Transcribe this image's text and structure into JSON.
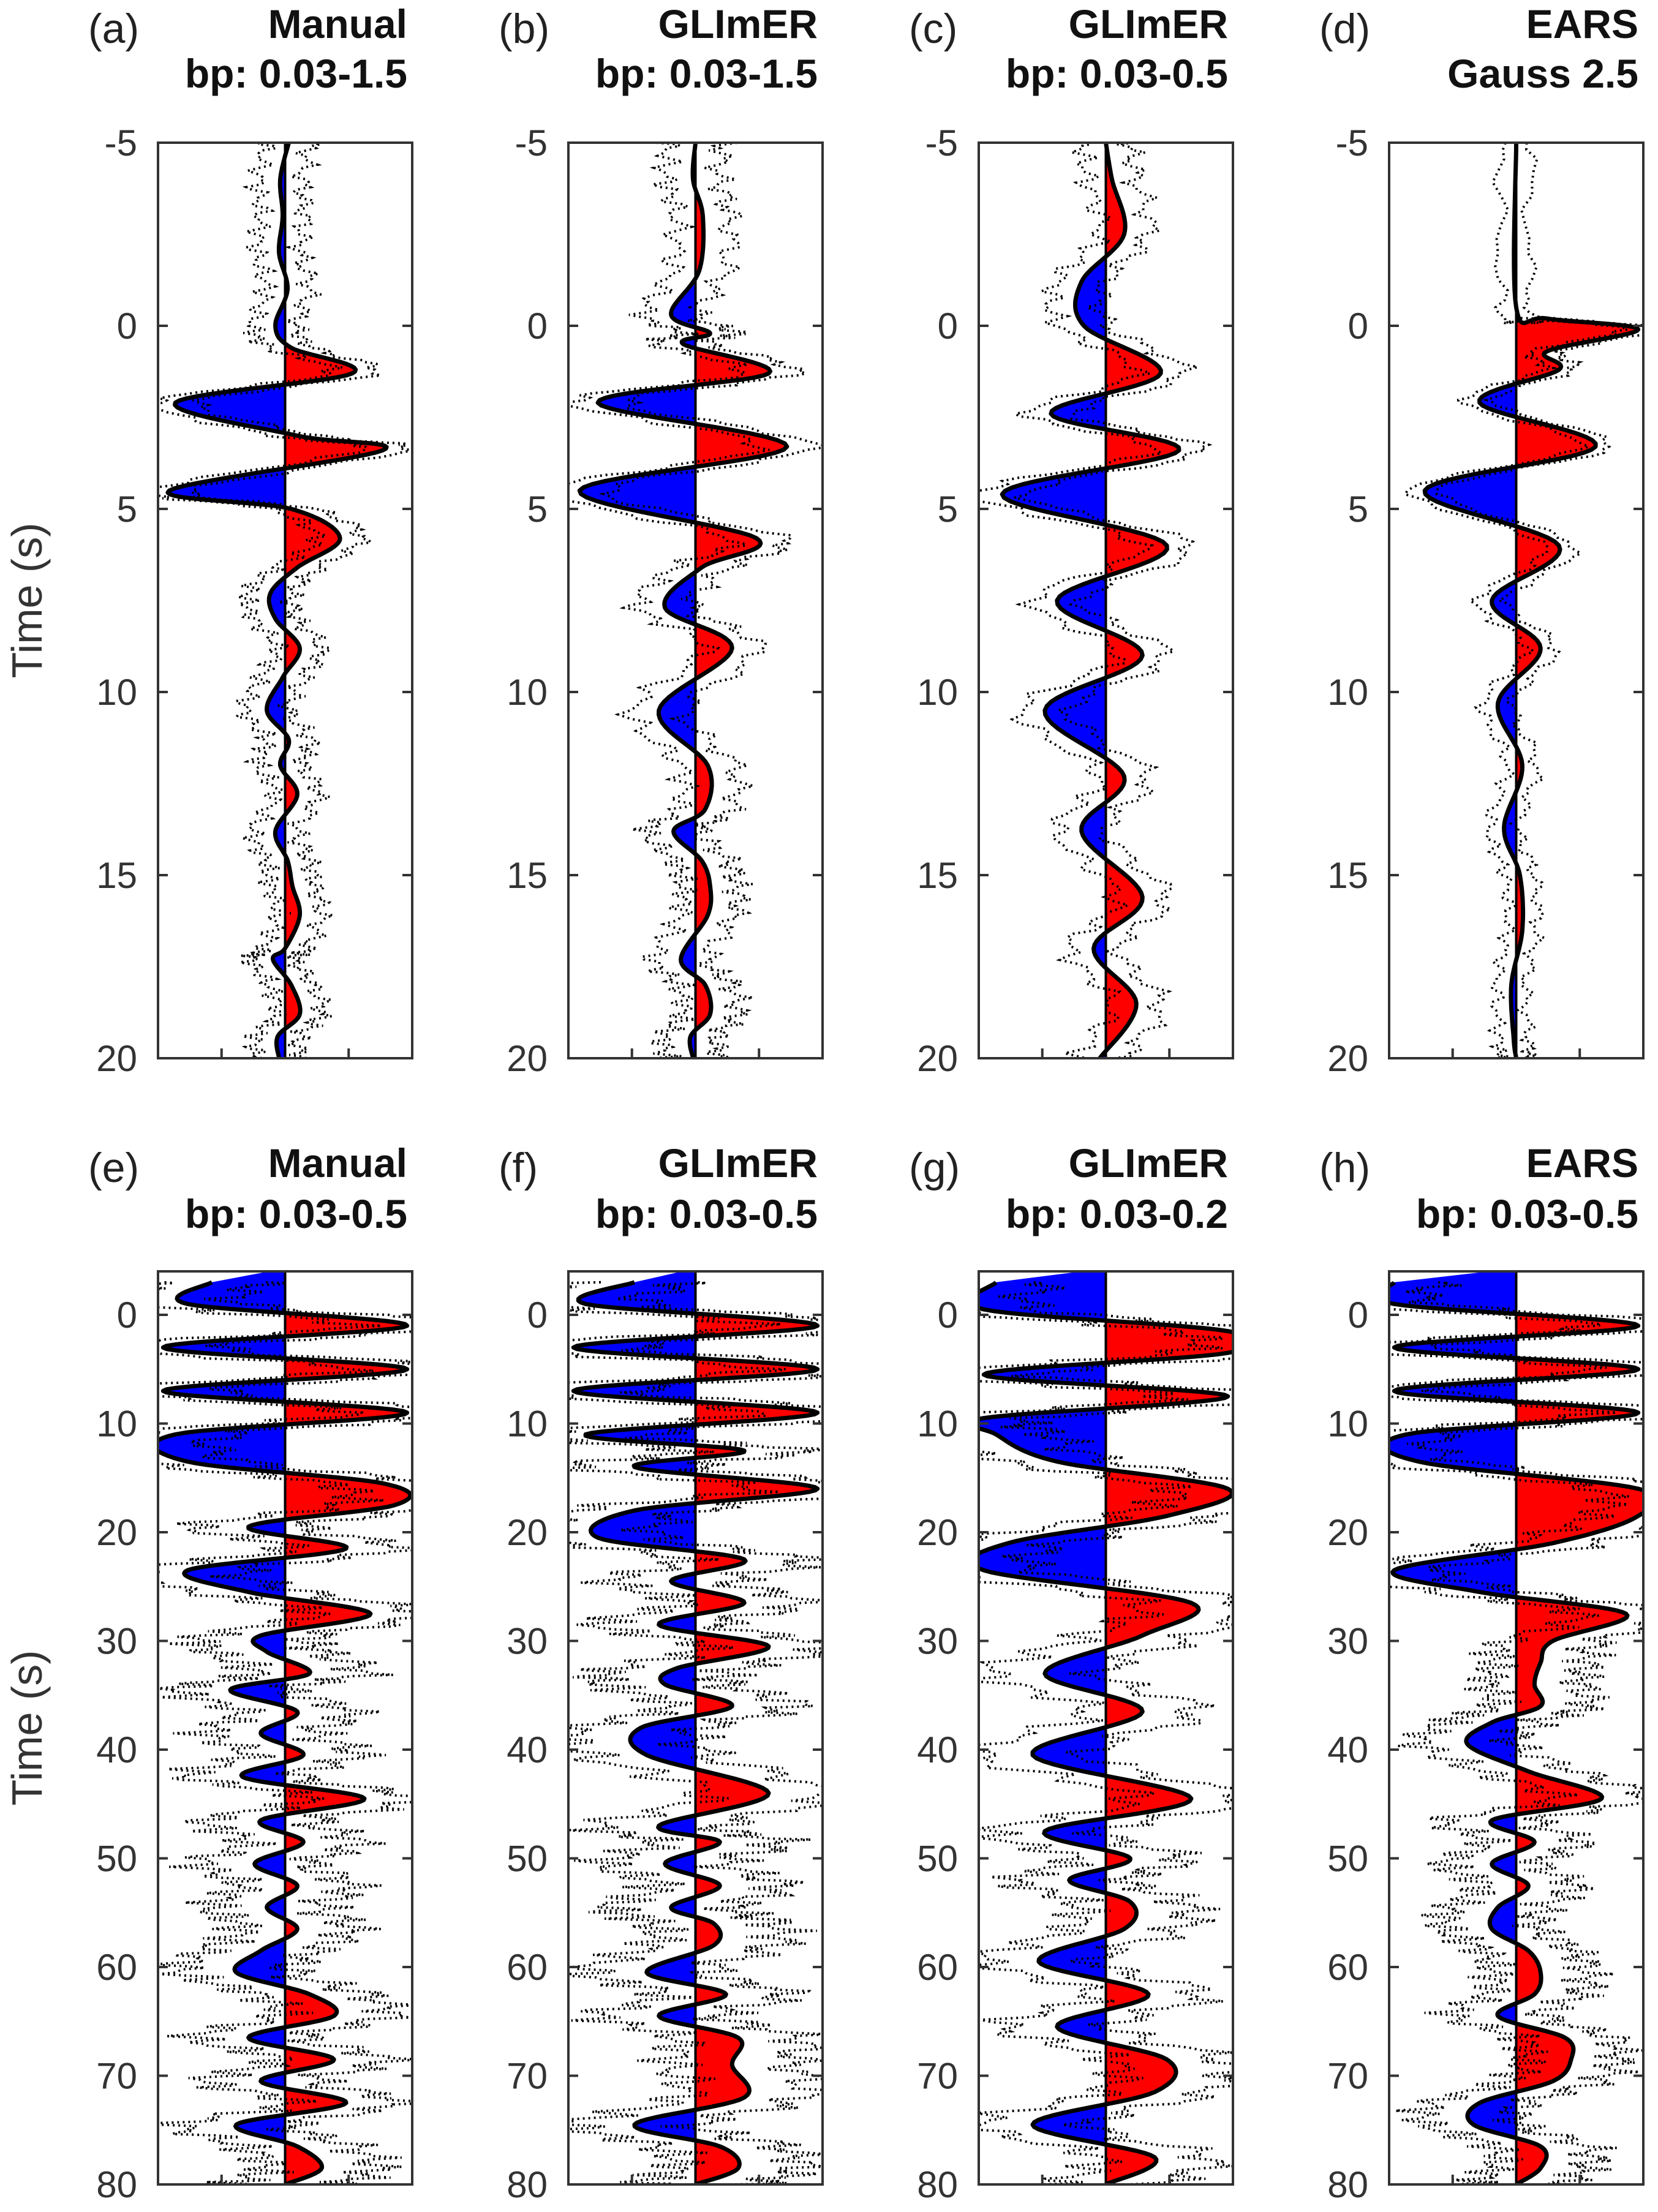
{
  "figure": {
    "ylabel": "Time (s)",
    "colors": {
      "positive": "#ff0000",
      "negative": "#0000ff",
      "trace": "#000000",
      "bounds": "#000000",
      "frame": "#333333"
    }
  },
  "chart_data": [
    {
      "type": "area",
      "panel": "(a)",
      "title_line1": "Manual",
      "title_line2": "bp: 0.03-1.5",
      "ylabel": "Time (s)",
      "ylim": [
        -5,
        20
      ],
      "yticks": [
        "-5",
        "0",
        "5",
        "10",
        "15",
        "20"
      ],
      "x": [
        -5,
        -4,
        -3,
        -2,
        -1,
        0,
        0.6,
        1.3,
        2.1,
        3.0,
        3.4,
        4.5,
        5.0,
        5.8,
        6.6,
        7.3,
        8.0,
        8.8,
        9.6,
        10.5,
        11.3,
        12.0,
        12.8,
        13.8,
        14.6,
        15.3,
        16.1,
        17.0,
        17.3,
        18.0,
        18.8,
        19.4,
        20
      ],
      "values": [
        0.03,
        -0.04,
        -0.02,
        -0.05,
        0.02,
        -0.08,
        0.05,
        0.55,
        -0.9,
        0.1,
        0.8,
        -0.95,
        0.05,
        0.45,
        0.1,
        -0.12,
        -0.08,
        0.12,
        -0.02,
        -0.15,
        0.03,
        -0.04,
        0.1,
        -0.08,
        0.02,
        0.06,
        0.12,
        0.0,
        -0.1,
        0.05,
        0.12,
        -0.06,
        -0.05
      ],
      "bound_width": 0.18
    },
    {
      "type": "area",
      "panel": "(b)",
      "title_line1": "GLImER",
      "title_line2": "bp: 0.03-1.5",
      "ylabel": "",
      "ylim": [
        -5,
        20
      ],
      "yticks": [
        "-5",
        "0",
        "5",
        "10",
        "15",
        "20"
      ],
      "x": [
        -5,
        -4,
        -3,
        -1.5,
        -0.3,
        0.2,
        0.5,
        1.3,
        2.1,
        3.3,
        4.5,
        5.8,
        6.6,
        7.7,
        8.8,
        10.5,
        12.0,
        13.2,
        13.8,
        14.6,
        15.3,
        16.1,
        17.3,
        18.0,
        18.8,
        19.4,
        20
      ],
      "values": [
        0.0,
        -0.02,
        0.06,
        0.03,
        -0.2,
        0.12,
        -0.1,
        0.6,
        -0.8,
        0.75,
        -0.95,
        0.5,
        0.05,
        -0.25,
        0.3,
        -0.3,
        0.1,
        0.08,
        -0.18,
        0.05,
        0.12,
        0.1,
        -0.12,
        0.08,
        0.12,
        -0.04,
        -0.02
      ],
      "bound_width": 0.22
    },
    {
      "type": "area",
      "panel": "(c)",
      "title_line1": "GLImER",
      "title_line2": "bp: 0.03-0.5",
      "ylabel": "",
      "ylim": [
        -5,
        20
      ],
      "yticks": [
        "-5",
        "0",
        "5",
        "10",
        "15",
        "20"
      ],
      "x": [
        -5,
        -4,
        -2.5,
        -1.2,
        0.0,
        1.3,
        2.4,
        3.4,
        4.6,
        6.0,
        7.5,
        9.0,
        10.5,
        12.3,
        13.8,
        15.6,
        17.0,
        18.5,
        20
      ],
      "values": [
        0.0,
        0.05,
        0.15,
        -0.2,
        -0.18,
        0.45,
        -0.45,
        0.6,
        -0.85,
        0.5,
        -0.4,
        0.3,
        -0.5,
        0.15,
        -0.2,
        0.3,
        -0.1,
        0.25,
        -0.05
      ],
      "bound_width": 0.2
    },
    {
      "type": "area",
      "panel": "(d)",
      "title_line1": "EARS",
      "title_line2": "Gauss 2.5",
      "ylabel": "",
      "ylim": [
        -5,
        20
      ],
      "yticks": [
        "-5",
        "0",
        "5",
        "10",
        "15",
        "20"
      ],
      "x": [
        -5,
        -0.5,
        -0.2,
        0.1,
        0.7,
        1.2,
        2.1,
        3.3,
        4.5,
        6.0,
        7.5,
        8.8,
        10.3,
        12.0,
        13.7,
        15.0,
        16.5,
        18.0,
        19.5,
        20
      ],
      "values": [
        0.0,
        0.0,
        0.25,
        1.0,
        0.25,
        0.35,
        -0.3,
        0.65,
        -0.75,
        0.35,
        -0.2,
        0.2,
        -0.15,
        0.05,
        -0.1,
        0.03,
        0.05,
        -0.04,
        -0.02,
        0.0
      ],
      "bound_width": 0.12
    },
    {
      "type": "area",
      "panel": "(e)",
      "title_line1": "Manual",
      "title_line2": "bp: 0.03-0.5",
      "ylabel": "Time (s)",
      "ylim": [
        -4,
        80
      ],
      "yticks": [
        "0",
        "10",
        "20",
        "30",
        "40",
        "50",
        "60",
        "70",
        "80"
      ],
      "x": [
        -3,
        -1,
        1,
        3,
        5,
        7,
        9,
        11,
        13.5,
        15.5,
        17.5,
        19.5,
        21.5,
        23.5,
        25.5,
        27.5,
        29.5,
        31,
        33,
        34.5,
        36.5,
        38.5,
        40.5,
        42.5,
        44.5,
        46.5,
        48.5,
        50.5,
        52.5,
        54.5,
        56.5,
        58.5,
        60.5,
        62.5,
        64.5,
        66.5,
        68.5,
        70.5,
        72.5,
        74.5,
        76.5,
        78.5,
        80
      ],
      "values": [
        -0.6,
        -0.8,
        1.0,
        -1.0,
        1.0,
        -1.0,
        1.0,
        -0.9,
        -0.8,
        0.8,
        0.9,
        -0.3,
        0.5,
        -0.8,
        -0.3,
        0.7,
        -0.2,
        -0.15,
        0.2,
        -0.45,
        0.1,
        -0.2,
        0.15,
        -0.35,
        0.65,
        -0.2,
        0.15,
        -0.25,
        0.1,
        -0.15,
        0.1,
        -0.2,
        -0.4,
        0.2,
        0.4,
        -0.3,
        0.4,
        -0.2,
        0.5,
        -0.4,
        0.1,
        0.3,
        0.0
      ],
      "bound_width": 0.45
    },
    {
      "type": "area",
      "panel": "(f)",
      "title_line1": "GLImER",
      "title_line2": "bp: 0.03-0.5",
      "ylabel": "",
      "ylim": [
        -4,
        80
      ],
      "yticks": [
        "0",
        "10",
        "20",
        "30",
        "40",
        "50",
        "60",
        "70",
        "80"
      ],
      "x": [
        -3,
        -1,
        1,
        3,
        5,
        7,
        9,
        11,
        12.5,
        14,
        16,
        18,
        20.5,
        22.5,
        24.5,
        26.5,
        28.5,
        30.5,
        32.5,
        34,
        36,
        38,
        40.5,
        44,
        47,
        48.5,
        50.5,
        52.5,
        54.5,
        56,
        58,
        60.5,
        62.5,
        64.5,
        66.5,
        69,
        72,
        74.5,
        76.5,
        78.5,
        80
      ],
      "values": [
        -0.5,
        -0.9,
        1.0,
        -1.0,
        1.0,
        -1.0,
        1.0,
        -0.9,
        0.4,
        -0.5,
        1.0,
        -0.5,
        -0.8,
        0.4,
        -0.2,
        0.4,
        -0.3,
        0.6,
        -0.15,
        -0.25,
        0.3,
        -0.45,
        -0.4,
        0.6,
        -0.3,
        0.2,
        -0.25,
        0.2,
        -0.2,
        0.15,
        0.15,
        -0.4,
        0.25,
        -0.3,
        0.35,
        0.3,
        0.4,
        -0.5,
        0.2,
        0.35,
        0.0
      ],
      "bound_width": 0.5
    },
    {
      "type": "area",
      "panel": "(g)",
      "title_line1": "GLImER",
      "title_line2": "bp: 0.03-0.2",
      "ylabel": "",
      "ylim": [
        -4,
        80
      ],
      "yticks": [
        "0",
        "10",
        "20",
        "30",
        "40",
        "50",
        "60",
        "70",
        "80"
      ],
      "x": [
        -3,
        -0.5,
        1.5,
        3.5,
        5.5,
        7.5,
        9.5,
        11,
        13.5,
        16,
        18.5,
        21,
        23.5,
        26.5,
        29.5,
        33,
        36.5,
        40.5,
        44.5,
        47.5,
        50,
        52,
        54,
        56.5,
        59.5,
        62.5,
        65.5,
        68.5,
        71.5,
        74.5,
        77.5,
        80
      ],
      "values": [
        -0.9,
        -1.0,
        1.0,
        1.0,
        -1.0,
        1.0,
        -1.0,
        -0.9,
        -0.4,
        1.0,
        0.5,
        -0.8,
        -1.0,
        0.7,
        0.3,
        -0.5,
        0.3,
        -0.6,
        0.7,
        -0.5,
        0.2,
        -0.3,
        0.2,
        0.15,
        -0.55,
        0.35,
        -0.4,
        0.5,
        0.4,
        -0.6,
        0.4,
        0.0
      ],
      "bound_width": 0.45
    },
    {
      "type": "area",
      "panel": "(h)",
      "title_line1": "EARS",
      "title_line2": "bp: 0.03-0.5",
      "ylabel": "",
      "ylim": [
        -4,
        80
      ],
      "yticks": [
        "0",
        "10",
        "20",
        "30",
        "40",
        "50",
        "60",
        "70",
        "80"
      ],
      "x": [
        -3,
        -1,
        1,
        3,
        5,
        7,
        9,
        11,
        13.5,
        16,
        18.5,
        21,
        23.5,
        25.5,
        27.5,
        30,
        32,
        34,
        36,
        37.5,
        39.5,
        42,
        44.5,
        46.5,
        48.5,
        50.5,
        52.5,
        54.5,
        56.5,
        58.5,
        60.5,
        62.5,
        64.5,
        66.5,
        68.5,
        70.5,
        72.5,
        74.5,
        76.5,
        78.5,
        80
      ],
      "values": [
        -1.0,
        -1.0,
        1.0,
        -1.0,
        1.0,
        -1.0,
        1.0,
        -0.9,
        -0.8,
        1.0,
        1.0,
        0.3,
        -1.0,
        -0.3,
        0.9,
        0.3,
        0.2,
        0.15,
        0.2,
        -0.2,
        -0.4,
        0.1,
        0.7,
        -0.2,
        0.15,
        -0.2,
        0.1,
        -0.15,
        -0.2,
        0.1,
        0.2,
        0.15,
        -0.15,
        0.4,
        0.45,
        0.3,
        -0.3,
        -0.35,
        0.2,
        0.2,
        0.0
      ],
      "bound_width": 0.38
    }
  ]
}
